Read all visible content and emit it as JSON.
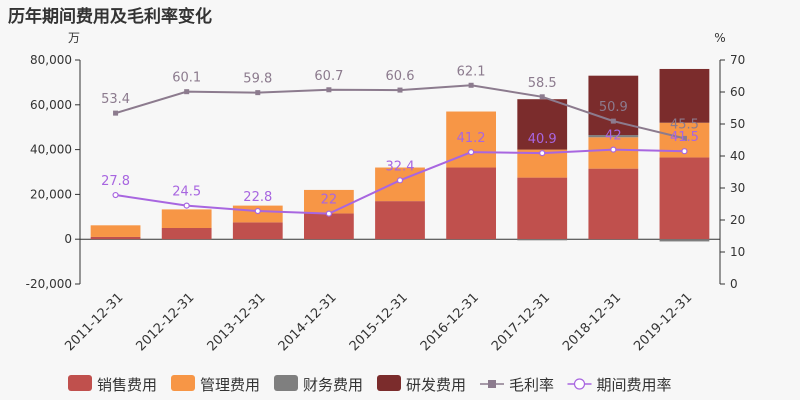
{
  "title": "历年期间费用及毛利率变化",
  "chart_data": {
    "type": "bar",
    "stacked": true,
    "categories": [
      "2011-12-31",
      "2012-12-31",
      "2013-12-31",
      "2014-12-31",
      "2015-12-31",
      "2016-12-31",
      "2017-12-31",
      "2018-12-31",
      "2019-12-31"
    ],
    "y_left": {
      "unit": "万",
      "ylim": [
        -20000,
        80000
      ],
      "ticks": [
        -20000,
        0,
        20000,
        40000,
        60000,
        80000
      ],
      "tick_labels": [
        "-20,000",
        "0",
        "20,000",
        "40,000",
        "60,000",
        "80,000"
      ]
    },
    "y_right": {
      "unit": "%",
      "ylim": [
        0,
        70
      ],
      "ticks": [
        0,
        10,
        20,
        30,
        40,
        50,
        60,
        70
      ]
    },
    "series": [
      {
        "name": "销售费用",
        "type": "bar",
        "color": "#c0504d",
        "values": [
          1000,
          5000,
          7500,
          11500,
          17000,
          32000,
          27500,
          31500,
          36500
        ]
      },
      {
        "name": "管理费用",
        "type": "bar",
        "color": "#f79646",
        "values": [
          5200,
          8300,
          7500,
          10500,
          15000,
          25000,
          12500,
          14000,
          15500
        ]
      },
      {
        "name": "财务费用",
        "type": "bar",
        "color": "#7f7f7f",
        "values": [
          0,
          0,
          0,
          0,
          0,
          0,
          -500,
          1000,
          -1000
        ]
      },
      {
        "name": "研发费用",
        "type": "bar",
        "color": "#7b2c2c",
        "values": [
          0,
          0,
          0,
          0,
          0,
          0,
          22500,
          26500,
          24000
        ]
      },
      {
        "name": "毛利率",
        "type": "line",
        "axis": "right",
        "color": "#8c7b8e",
        "values": [
          53.4,
          60.1,
          59.8,
          60.7,
          60.6,
          62.1,
          58.5,
          50.9,
          45.5
        ],
        "labels": [
          "53.4",
          "60.1",
          "59.8",
          "60.7",
          "60.6",
          "62.1",
          "58.5",
          "50.9",
          "45.5"
        ]
      },
      {
        "name": "期间费用率",
        "type": "line",
        "axis": "right",
        "color": "#a866e0",
        "values": [
          27.8,
          24.5,
          22.8,
          22,
          32.4,
          41.2,
          40.9,
          42,
          41.5
        ],
        "labels": [
          "27.8",
          "24.5",
          "22.8",
          "22",
          "32.4",
          "41.2",
          "40.9",
          "42",
          "41.5"
        ]
      }
    ],
    "legend_position": "bottom",
    "grid": false
  }
}
